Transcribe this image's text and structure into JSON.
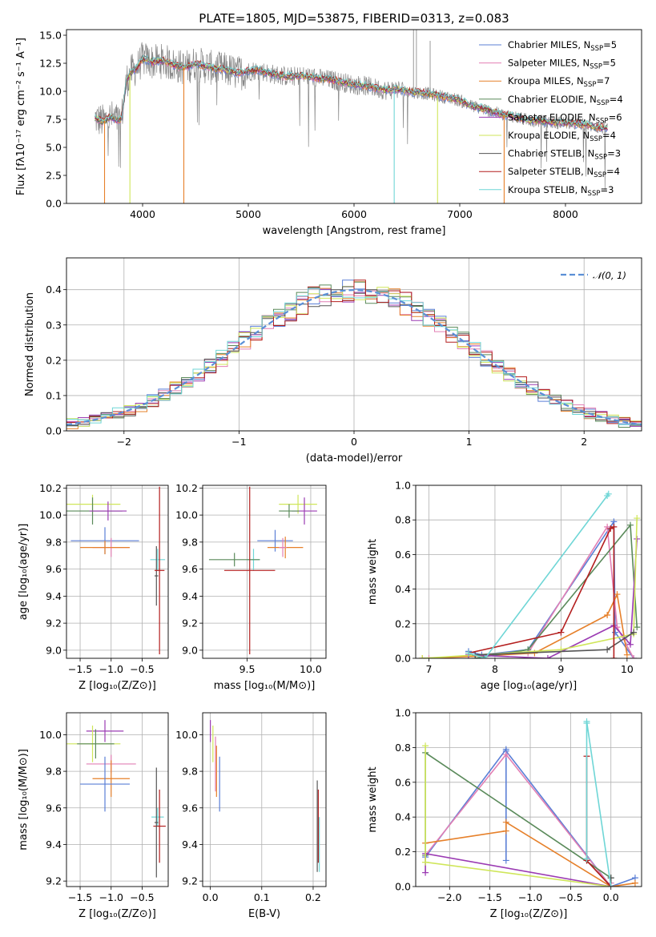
{
  "chart_data": [
    {
      "id": "spectrum",
      "type": "line",
      "title": "PLATE=1805, MJD=53875, FIBERID=0313, z=0.083",
      "xlabel": "wavelength [Angstrom, rest frame]",
      "ylabel": "Flux [fλ10⁻¹⁷ erg cm⁻² s⁻¹ A⁻¹]",
      "xlim": [
        3280,
        8720
      ],
      "ylim": [
        0,
        15.5
      ],
      "xticks": [
        4000,
        5000,
        6000,
        7000,
        8000
      ],
      "yticks": [
        0.0,
        2.5,
        5.0,
        7.5,
        10.0,
        12.5,
        15.0
      ],
      "data_curve": {
        "name": "data",
        "x": [
          3550,
          3620,
          3700,
          3760,
          3800,
          3850,
          3900,
          3950,
          4000,
          4100,
          4200,
          4300,
          4400,
          4500,
          4600,
          4700,
          4800,
          4900,
          5000,
          5100,
          5200,
          5300,
          5400,
          5500,
          5600,
          5700,
          5800,
          5900,
          6000,
          6100,
          6200,
          6300,
          6400,
          6500,
          6600,
          6700,
          6800,
          6900,
          7000,
          7100,
          7200,
          7300,
          7400,
          7500,
          7600,
          7700,
          7800,
          7900,
          8000,
          8100,
          8200,
          8300,
          8400
        ],
        "y": [
          7.6,
          7.3,
          7.7,
          7.4,
          7.6,
          11.0,
          11.8,
          12.1,
          12.9,
          12.6,
          12.7,
          12.3,
          12.1,
          12.5,
          12.2,
          12.0,
          11.9,
          11.6,
          11.8,
          11.9,
          11.6,
          11.4,
          11.3,
          11.4,
          11.3,
          11.1,
          11.0,
          10.8,
          10.6,
          10.5,
          10.3,
          10.1,
          10.2,
          10.0,
          9.9,
          9.8,
          9.6,
          9.4,
          9.2,
          8.7,
          8.5,
          8.2,
          7.9,
          7.8,
          7.5,
          7.4,
          7.3,
          7.2,
          7.2,
          7.1,
          7.0,
          6.8,
          6.7
        ]
      },
      "series": [
        {
          "name": "Chabrier MILES, N",
          "sub": "SSP",
          "suffix": "=5",
          "color": "#5b7fd6"
        },
        {
          "name": "Salpeter MILES, N",
          "sub": "SSP",
          "suffix": "=5",
          "color": "#e27fb4"
        },
        {
          "name": "Kroupa MILES, N",
          "sub": "SSP",
          "suffix": "=7",
          "color": "#e6802a"
        },
        {
          "name": "Chabrier ELODIE, N",
          "sub": "SSP",
          "suffix": "=4",
          "color": "#5a8a5a"
        },
        {
          "name": "Salpeter ELODIE, N",
          "sub": "SSP",
          "suffix": "=6",
          "color": "#9b3bb3"
        },
        {
          "name": "Kroupa ELODIE, N",
          "sub": "SSP",
          "suffix": "=4",
          "color": "#cfe65a"
        },
        {
          "name": "Chabrier STELIB, N",
          "sub": "SSP",
          "suffix": "=3",
          "color": "#555555"
        },
        {
          "name": "Salpeter STELIB, N",
          "sub": "SSP",
          "suffix": "=4",
          "color": "#b41f1f"
        },
        {
          "name": "Kroupa STELIB, N",
          "sub": "SSP",
          "suffix": "=3",
          "color": "#6fd6d6"
        }
      ],
      "legend": "upper-right"
    },
    {
      "id": "residuals",
      "type": "line",
      "xlabel": "(data-model)/error",
      "ylabel": "Normed distribution",
      "xlim": [
        -2.5,
        2.5
      ],
      "ylim": [
        0,
        0.49
      ],
      "xticks": [
        -2,
        -1,
        0,
        1,
        2
      ],
      "yticks": [
        0.0,
        0.1,
        0.2,
        0.3,
        0.4
      ],
      "legend_label": "𝒩(0, 1)",
      "gaussian": {
        "mean": 0,
        "sigma": 1,
        "color": "#5b8fd6"
      },
      "grid": true,
      "legend": "upper-right"
    },
    {
      "id": "age-vs-Z",
      "type": "scatter",
      "xlabel": "Z [log₁₀(Z/Z⊙)]",
      "ylabel": "age  [log₁₀(age/yr)]",
      "xlim": [
        -1.72,
        -0.08
      ],
      "ylim": [
        8.94,
        10.22
      ],
      "xticks": [
        -1.5,
        -1.0,
        -0.5
      ],
      "xtick_labels": [
        "−1.5",
        "−1.0",
        "−0.5"
      ],
      "yticks": [
        9.0,
        9.2,
        9.4,
        9.6,
        9.8,
        10.0,
        10.2
      ],
      "grid": true,
      "points": [
        {
          "x": -1.3,
          "y": 10.08,
          "xerr": 0.45,
          "yerr": 0.07,
          "color": "#cfe65a"
        },
        {
          "x": -1.3,
          "y": 10.03,
          "xerr": 0.48,
          "yerr": 0.1,
          "color": "#5a8a5a"
        },
        {
          "x": -1.05,
          "y": 10.03,
          "xerr": 0.3,
          "yerr": 0.07,
          "color": "#9b3bb3"
        },
        {
          "x": -1.1,
          "y": 9.81,
          "xerr": 0.55,
          "yerr": 0.1,
          "color": "#5b7fd6"
        },
        {
          "x": -1.0,
          "y": 9.76,
          "xerr": 0.3,
          "yerr": 0.07,
          "color": "#e27fb4"
        },
        {
          "x": -1.1,
          "y": 9.76,
          "xerr": 0.4,
          "yerr": 0.05,
          "color": "#e6802a"
        },
        {
          "x": -0.25,
          "y": 9.67,
          "xerr": 0.12,
          "yerr": 0.08,
          "color": "#6fd6d6"
        },
        {
          "x": -0.27,
          "y": 9.55,
          "xerr": 0.03,
          "yerr": 0.22,
          "color": "#555555"
        },
        {
          "x": -0.22,
          "y": 9.59,
          "xerr": 0.08,
          "yerr": 0.62,
          "color": "#b41f1f"
        }
      ]
    },
    {
      "id": "age-vs-mass",
      "type": "scatter",
      "xlabel": "mass [log₁₀(M/M⊙)]",
      "ylabel": "",
      "xlim": [
        9.15,
        10.12
      ],
      "ylim": [
        8.94,
        10.22
      ],
      "xticks": [
        9.5,
        10.0
      ],
      "yticks": [
        9.0,
        9.2,
        9.4,
        9.6,
        9.8,
        10.0,
        10.2
      ],
      "grid": true,
      "points": [
        {
          "x": 9.9,
          "y": 10.08,
          "xerr": 0.15,
          "yerr": 0.07,
          "color": "#cfe65a"
        },
        {
          "x": 9.95,
          "y": 10.03,
          "xerr": 0.1,
          "yerr": 0.1,
          "color": "#9b3bb3"
        },
        {
          "x": 9.83,
          "y": 10.03,
          "xerr": 0.08,
          "yerr": 0.05,
          "color": "#5a8a5a"
        },
        {
          "x": 9.72,
          "y": 9.81,
          "xerr": 0.14,
          "yerr": 0.08,
          "color": "#5b7fd6"
        },
        {
          "x": 9.8,
          "y": 9.76,
          "xerr": 0.14,
          "yerr": 0.08,
          "color": "#e6802a"
        },
        {
          "x": 9.78,
          "y": 9.76,
          "xerr": 0.03,
          "yerr": 0.07,
          "color": "#e27fb4"
        },
        {
          "x": 9.55,
          "y": 9.67,
          "xerr": 0.05,
          "yerr": 0.08,
          "color": "#6fd6d6"
        },
        {
          "x": 9.4,
          "y": 9.67,
          "xerr": 0.2,
          "yerr": 0.05,
          "color": "#5a8a5a"
        },
        {
          "x": 9.52,
          "y": 9.59,
          "xerr": 0.2,
          "yerr": 0.62,
          "color": "#b41f1f"
        }
      ]
    },
    {
      "id": "weight-vs-age",
      "type": "line",
      "xlabel": "age  [log₁₀(age/yr)]",
      "ylabel": "mass weight",
      "xlim": [
        6.8,
        10.22
      ],
      "ylim": [
        0,
        1.0
      ],
      "xticks": [
        7,
        8,
        9,
        10
      ],
      "yticks": [
        0.0,
        0.2,
        0.4,
        0.6,
        0.8,
        1.0
      ],
      "grid": true,
      "series": [
        {
          "color": "#5b7fd6",
          "x": [
            7.6,
            7.8,
            8.5,
            9.8,
            9.82,
            10.1
          ],
          "y": [
            0.04,
            0.02,
            0.05,
            0.79,
            0.15,
            0.0
          ]
        },
        {
          "color": "#e27fb4",
          "x": [
            7.0,
            8.5,
            9.7,
            9.85,
            10.1
          ],
          "y": [
            0.0,
            0.03,
            0.76,
            0.18,
            0.0
          ]
        },
        {
          "color": "#e6802a",
          "x": [
            6.9,
            7.6,
            8.6,
            9.7,
            9.85,
            10.0
          ],
          "y": [
            0.0,
            0.01,
            0.03,
            0.25,
            0.37,
            0.02
          ]
        },
        {
          "color": "#5a8a5a",
          "x": [
            7.7,
            8.5,
            10.05,
            10.15
          ],
          "y": [
            0.0,
            0.05,
            0.77,
            0.18
          ]
        },
        {
          "color": "#9b3bb3",
          "x": [
            7.6,
            8.8,
            9.8,
            10.05,
            10.15
          ],
          "y": [
            0.02,
            0.0,
            0.19,
            0.08,
            0.69
          ]
        },
        {
          "color": "#cfe65a",
          "x": [
            6.9,
            9.0,
            10.1,
            10.15
          ],
          "y": [
            0.0,
            0.05,
            0.14,
            0.81
          ]
        },
        {
          "color": "#555555",
          "x": [
            7.7,
            9.7,
            10.1
          ],
          "y": [
            0.02,
            0.05,
            0.15
          ]
        },
        {
          "color": "#b41f1f",
          "x": [
            7.6,
            9.0,
            9.75,
            9.8,
            9.8
          ],
          "y": [
            0.03,
            0.15,
            0.75,
            0.76,
            0.0
          ]
        },
        {
          "color": "#6fd6d6",
          "x": [
            7.6,
            7.85,
            9.7,
            9.72
          ],
          "y": [
            0.03,
            0.0,
            0.94,
            0.95
          ]
        }
      ]
    },
    {
      "id": "mass-vs-Z",
      "type": "scatter",
      "xlabel": "Z [log₁₀(Z/Z⊙)]",
      "ylabel": "mass [log₁₀(M/M⊙)]",
      "xlim": [
        -1.72,
        -0.08
      ],
      "ylim": [
        9.17,
        10.12
      ],
      "xticks": [
        -1.5,
        -1.0,
        -0.5
      ],
      "xtick_labels": [
        "−1.5",
        "−1.0",
        "−0.5"
      ],
      "yticks": [
        9.2,
        9.4,
        9.6,
        9.8,
        10.0
      ],
      "grid": true,
      "points": [
        {
          "x": -1.1,
          "y": 10.02,
          "xerr": 0.3,
          "yerr": 0.06,
          "color": "#9b3bb3"
        },
        {
          "x": -1.3,
          "y": 9.95,
          "xerr": 0.45,
          "yerr": 0.1,
          "color": "#cfe65a"
        },
        {
          "x": -1.25,
          "y": 9.95,
          "xerr": 0.3,
          "yerr": 0.08,
          "color": "#5a8a5a"
        },
        {
          "x": -1.0,
          "y": 9.84,
          "xerr": 0.4,
          "yerr": 0.05,
          "color": "#e27fb4"
        },
        {
          "x": -1.0,
          "y": 9.76,
          "xerr": 0.3,
          "yerr": 0.1,
          "color": "#e6802a"
        },
        {
          "x": -1.1,
          "y": 9.73,
          "xerr": 0.4,
          "yerr": 0.15,
          "color": "#5b7fd6"
        },
        {
          "x": -0.25,
          "y": 9.55,
          "xerr": 0.1,
          "yerr": 0.05,
          "color": "#6fd6d6"
        },
        {
          "x": -0.22,
          "y": 9.5,
          "xerr": 0.1,
          "yerr": 0.2,
          "color": "#b41f1f"
        },
        {
          "x": -0.27,
          "y": 9.52,
          "xerr": 0.03,
          "yerr": 0.3,
          "color": "#555555"
        }
      ]
    },
    {
      "id": "mass-vs-EBV",
      "type": "scatter",
      "xlabel": "E(B-V)",
      "ylabel": "",
      "xlim": [
        -0.015,
        0.225
      ],
      "ylim": [
        9.17,
        10.12
      ],
      "xticks": [
        0.0,
        0.1,
        0.2
      ],
      "yticks": [
        9.2,
        9.4,
        9.6,
        9.8,
        10.0
      ],
      "grid": true,
      "points": [
        {
          "x": 0.0,
          "y": 10.02,
          "xerr": 0.0,
          "yerr": 0.06,
          "color": "#9b3bb3"
        },
        {
          "x": 0.005,
          "y": 9.95,
          "xerr": 0.0,
          "yerr": 0.1,
          "color": "#cfe65a"
        },
        {
          "x": 0.01,
          "y": 9.84,
          "xerr": 0.0,
          "yerr": 0.15,
          "color": "#e27fb4"
        },
        {
          "x": 0.012,
          "y": 9.8,
          "xerr": 0.0,
          "yerr": 0.14,
          "color": "#e6802a"
        },
        {
          "x": 0.018,
          "y": 9.73,
          "xerr": 0.0,
          "yerr": 0.15,
          "color": "#5b7fd6"
        },
        {
          "x": 0.21,
          "y": 9.5,
          "xerr": 0.0,
          "yerr": 0.2,
          "color": "#b41f1f"
        },
        {
          "x": 0.212,
          "y": 9.4,
          "xerr": 0.0,
          "yerr": 0.15,
          "color": "#6fd6d6"
        },
        {
          "x": 0.208,
          "y": 9.5,
          "xerr": 0.0,
          "yerr": 0.25,
          "color": "#555555"
        }
      ]
    },
    {
      "id": "weight-vs-Z",
      "type": "line",
      "xlabel": "Z [log₁₀(Z/Z⊙)]",
      "ylabel": "mass weight",
      "xlim": [
        -2.42,
        0.38
      ],
      "ylim": [
        0,
        1.0
      ],
      "xticks": [
        -2.0,
        -1.5,
        -1.0,
        -0.5,
        0.0
      ],
      "xtick_labels": [
        "−2.0",
        "−1.5",
        "−1.0",
        "−0.5",
        "0.0"
      ],
      "yticks": [
        0.0,
        0.2,
        0.4,
        0.6,
        0.8,
        1.0
      ],
      "grid": true,
      "series": [
        {
          "color": "#5b7fd6",
          "x": [
            -2.3,
            -1.3,
            -1.3,
            -1.3,
            0.0,
            0.3
          ],
          "y": [
            0.17,
            0.79,
            0.15,
            0.78,
            0.0,
            0.05
          ]
        },
        {
          "color": "#e27fb4",
          "x": [
            -2.3,
            -1.3,
            0.0,
            0.0
          ],
          "y": [
            0.18,
            0.76,
            0.0,
            0.02
          ]
        },
        {
          "color": "#e6802a",
          "x": [
            -2.3,
            -1.3,
            -1.3,
            0.0,
            0.3
          ],
          "y": [
            0.25,
            0.32,
            0.37,
            0.0,
            0.02
          ]
        },
        {
          "color": "#5a8a5a",
          "x": [
            -2.3,
            -2.3,
            0.0
          ],
          "y": [
            0.18,
            0.77,
            0.05
          ]
        },
        {
          "color": "#9b3bb3",
          "x": [
            -2.3,
            -2.3,
            0.0
          ],
          "y": [
            0.08,
            0.19,
            0.0
          ]
        },
        {
          "color": "#cfe65a",
          "x": [
            -2.3,
            -2.3,
            -2.3,
            0.0
          ],
          "y": [
            0.14,
            0.81,
            0.14,
            0.0
          ]
        },
        {
          "color": "#555555",
          "x": [
            -0.3,
            0.0,
            0.0
          ],
          "y": [
            0.15,
            0.0,
            0.05
          ]
        },
        {
          "color": "#b41f1f",
          "x": [
            -0.3,
            -0.3,
            0.0
          ],
          "y": [
            0.75,
            0.15,
            0.0
          ]
        },
        {
          "color": "#6fd6d6",
          "x": [
            -0.3,
            -0.3,
            -0.3,
            0.0
          ],
          "y": [
            0.94,
            0.16,
            0.95,
            0.0
          ]
        }
      ]
    }
  ]
}
